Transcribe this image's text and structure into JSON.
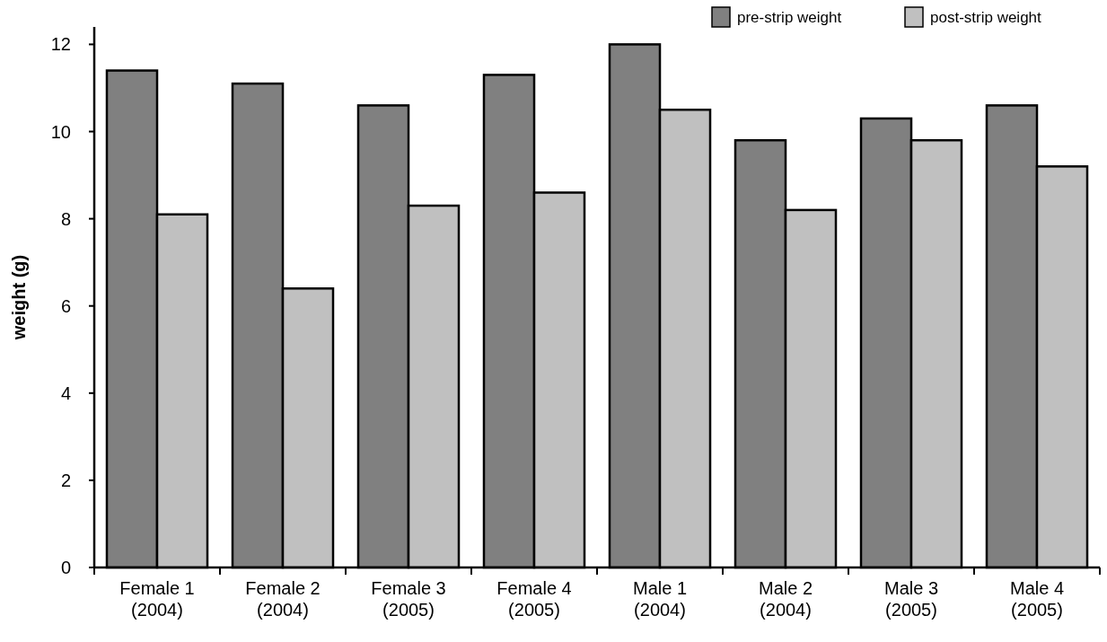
{
  "chart_data": {
    "type": "bar",
    "ylabel": "weight (g)",
    "categories": [
      "Female 1\n(2004)",
      "Female 2\n(2004)",
      "Female 3\n(2005)",
      "Female 4\n(2005)",
      "Male 1\n(2004)",
      "Male 2\n(2004)",
      "Male 3\n(2005)",
      "Male 4\n(2005)"
    ],
    "series": [
      {
        "name": "pre-strip weight",
        "color": "#808080",
        "values": [
          11.4,
          11.1,
          10.6,
          11.3,
          12.0,
          9.8,
          10.3,
          10.6
        ]
      },
      {
        "name": "post-strip weight",
        "color": "#c0c0c0",
        "values": [
          8.1,
          6.4,
          8.3,
          8.6,
          10.5,
          8.2,
          9.8,
          9.2
        ]
      }
    ],
    "ylim": [
      0,
      12.4
    ],
    "yticks": [
      0,
      2,
      4,
      6,
      8,
      10,
      12
    ],
    "grid": false,
    "legend": "top right"
  }
}
